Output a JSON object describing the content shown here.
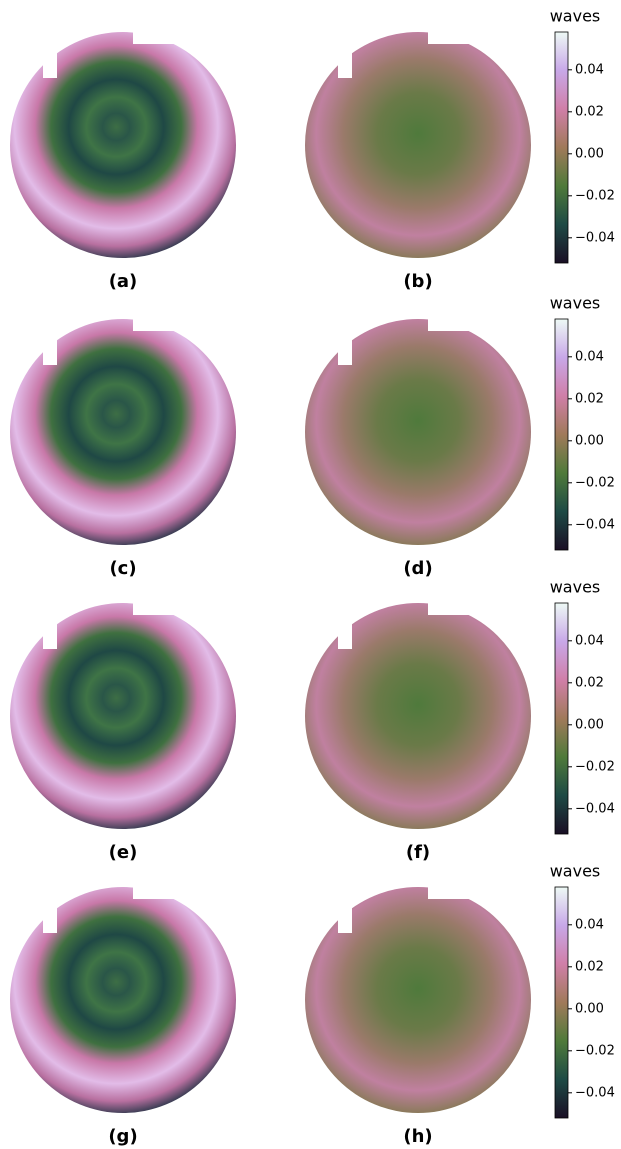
{
  "chart_data": [
    {
      "type": "colorbar-panels",
      "panels": [
        "(a)",
        "(b)"
      ],
      "colorbar_label": "waves",
      "clim": [
        -0.052,
        0.058
      ],
      "cticks": [
        {
          "value": -0.04,
          "label": "−0.04"
        },
        {
          "value": -0.02,
          "label": "−0.02"
        },
        {
          "value": 0,
          "label": "0.00"
        },
        0.02,
        0.04
      ],
      "colormap": [
        "#1a0f25",
        "#1e4a45",
        "#4f7a3a",
        "#a07a5a",
        "#d07fa8",
        "#c8a8e8",
        "#eef9f5"
      ]
    },
    {
      "type": "colorbar-panels",
      "panels": [
        "(c)",
        "(d)"
      ],
      "colorbar_label": "waves",
      "clim": [
        -0.052,
        0.058
      ],
      "cticks": [
        {
          "value": -0.04,
          "label": "−0.04"
        },
        {
          "value": -0.02,
          "label": "−0.02"
        },
        {
          "value": 0,
          "label": "0.00"
        },
        0.02,
        0.04
      ],
      "colormap": [
        "#1a0f25",
        "#1e4a45",
        "#4f7a3a",
        "#a07a5a",
        "#d07fa8",
        "#c8a8e8",
        "#eef9f5"
      ]
    },
    {
      "type": "colorbar-panels",
      "panels": [
        "(e)",
        "(f)"
      ],
      "colorbar_label": "waves",
      "clim": [
        -0.052,
        0.058
      ],
      "cticks": [
        {
          "value": -0.04,
          "label": "−0.04"
        },
        {
          "value": -0.02,
          "label": "−0.02"
        },
        {
          "value": 0,
          "label": "0.00"
        },
        0.02,
        0.04
      ],
      "colormap": [
        "#1a0f25",
        "#1e4a45",
        "#4f7a3a",
        "#a07a5a",
        "#d07fa8",
        "#c8a8e8",
        "#eef9f5"
      ]
    },
    {
      "type": "colorbar-panels",
      "panels": [
        "(g)",
        "(h)"
      ],
      "colorbar_label": "waves",
      "clim": [
        -0.052,
        0.058
      ],
      "cticks": [
        {
          "value": -0.04,
          "label": "−0.04"
        },
        {
          "value": -0.02,
          "label": "−0.02"
        },
        {
          "value": 0,
          "label": "0.00"
        },
        0.02,
        0.04
      ],
      "colormap": [
        "#1a0f25",
        "#1e4a45",
        "#4f7a3a",
        "#a07a5a",
        "#d07fa8",
        "#c8a8e8",
        "#eef9f5"
      ]
    }
  ]
}
